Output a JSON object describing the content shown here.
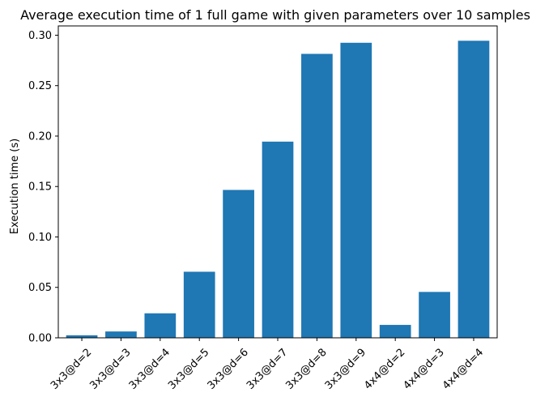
{
  "chart_data": {
    "type": "bar",
    "title": "Average execution time of 1 full game with given parameters over 10 samples",
    "xlabel": "",
    "ylabel": "Execution time (s)",
    "categories": [
      "3x3@d=2",
      "3x3@d=3",
      "3x3@d=4",
      "3x3@d=5",
      "3x3@d=6",
      "3x3@d=7",
      "3x3@d=8",
      "3x3@d=9",
      "4x4@d=2",
      "4x4@d=3",
      "4x4@d=4"
    ],
    "values": [
      0.0025,
      0.0063,
      0.0243,
      0.0655,
      0.1466,
      0.1945,
      0.2815,
      0.2925,
      0.0128,
      0.0455,
      0.2945
    ],
    "ylim": [
      0,
      0.3092
    ],
    "yticks": [
      0.0,
      0.05,
      0.1,
      0.15,
      0.2,
      0.25,
      0.3
    ],
    "ytick_labels": [
      "0.00",
      "0.05",
      "0.10",
      "0.15",
      "0.20",
      "0.25",
      "0.30"
    ],
    "bar_color": "#1f77b4",
    "grid": false,
    "legend": "none"
  }
}
